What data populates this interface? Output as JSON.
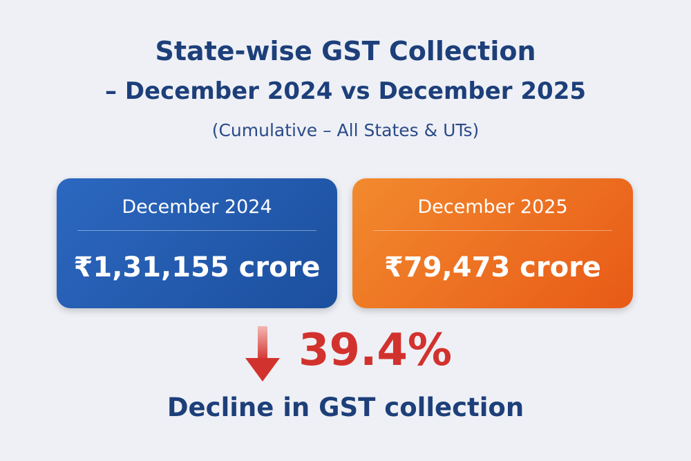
{
  "header": {
    "title": "State-wise GST Collection",
    "subtitle": "– December 2024 vs December 2025",
    "note": "(Cumulative – All States & UTs)"
  },
  "cards": [
    {
      "label": "December 2024",
      "amount": "₹1,31,155 crore"
    },
    {
      "label": "December 2025",
      "amount": "₹79,473 crore"
    }
  ],
  "change": {
    "value": "39.4%",
    "caption": "Decline in GST collection"
  }
}
